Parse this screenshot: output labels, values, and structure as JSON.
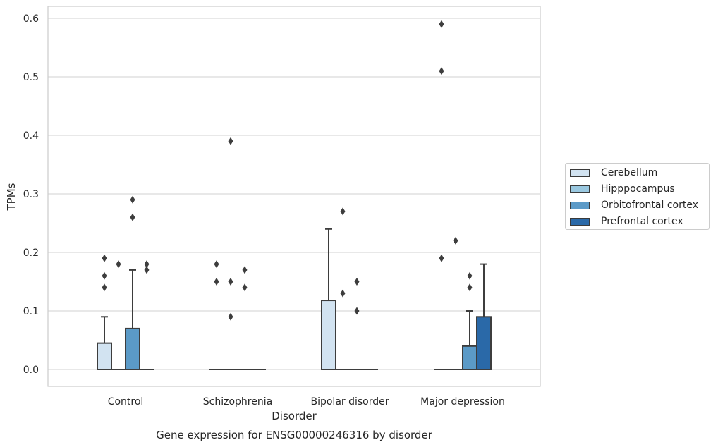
{
  "chart_data": {
    "type": "box",
    "title": "",
    "caption": "Gene expression for ENSG00000246316 by disorder",
    "xlabel": "Disorder",
    "ylabel": "TPMs",
    "ylim": [
      -0.03,
      0.62
    ],
    "yticks": [
      0.0,
      0.1,
      0.2,
      0.3,
      0.4,
      0.5,
      0.6
    ],
    "ytick_labels": [
      "0.0",
      "0.1",
      "0.2",
      "0.3",
      "0.4",
      "0.5",
      "0.6"
    ],
    "grid": "horizontal",
    "legend_position": "right",
    "categories": [
      "Control",
      "Schizophrenia",
      "Bipolar disorder",
      "Major depression"
    ],
    "series": [
      {
        "name": "Cerebellum",
        "color": "#d2e3f1",
        "boxes": [
          {
            "q1": 0,
            "median": 0,
            "q3": 0.045,
            "whisker_low": 0,
            "whisker_high": 0.09,
            "outliers": [
              0.14,
              0.16,
              0.19
            ]
          },
          {
            "q1": 0,
            "median": 0,
            "q3": 0,
            "whisker_low": 0,
            "whisker_high": 0,
            "outliers": [
              0.15,
              0.18
            ]
          },
          {
            "q1": 0,
            "median": 0,
            "q3": 0.118,
            "whisker_low": 0,
            "whisker_high": 0.24,
            "outliers": []
          },
          {
            "q1": 0,
            "median": 0,
            "q3": 0,
            "whisker_low": 0,
            "whisker_high": 0,
            "outliers": [
              0.19,
              0.51,
              0.59
            ]
          }
        ]
      },
      {
        "name": "Hipppocampus",
        "color": "#9ac8e0",
        "boxes": [
          {
            "q1": 0,
            "median": 0,
            "q3": 0,
            "whisker_low": 0,
            "whisker_high": 0,
            "outliers": [
              0.18
            ]
          },
          {
            "q1": 0,
            "median": 0,
            "q3": 0,
            "whisker_low": 0,
            "whisker_high": 0,
            "outliers": [
              0.15,
              0.39,
              0.09
            ]
          },
          {
            "q1": 0,
            "median": 0,
            "q3": 0,
            "whisker_low": 0,
            "whisker_high": 0,
            "outliers": [
              0.27,
              0.13
            ]
          },
          {
            "q1": 0,
            "median": 0,
            "q3": 0,
            "whisker_low": 0,
            "whisker_high": 0,
            "outliers": [
              0.22
            ]
          }
        ]
      },
      {
        "name": "Orbitofrontal cortex",
        "color": "#5b9ac7",
        "boxes": [
          {
            "q1": 0,
            "median": 0,
            "q3": 0.07,
            "whisker_low": 0,
            "whisker_high": 0.17,
            "outliers": [
              0.26,
              0.29
            ]
          },
          {
            "q1": 0,
            "median": 0,
            "q3": 0,
            "whisker_low": 0,
            "whisker_high": 0,
            "outliers": [
              0.14,
              0.17
            ]
          },
          {
            "q1": 0,
            "median": 0,
            "q3": 0,
            "whisker_low": 0,
            "whisker_high": 0,
            "outliers": [
              0.1,
              0.15
            ]
          },
          {
            "q1": 0,
            "median": 0,
            "q3": 0.04,
            "whisker_low": 0,
            "whisker_high": 0.1,
            "outliers": [
              0.14,
              0.16
            ]
          }
        ]
      },
      {
        "name": "Prefrontal cortex",
        "color": "#2a69a8",
        "boxes": [
          {
            "q1": 0,
            "median": 0,
            "q3": 0,
            "whisker_low": 0,
            "whisker_high": 0,
            "outliers": [
              0.17,
              0.18
            ]
          },
          {
            "q1": 0,
            "median": 0,
            "q3": 0,
            "whisker_low": 0,
            "whisker_high": 0,
            "outliers": []
          },
          {
            "q1": 0,
            "median": 0,
            "q3": 0,
            "whisker_low": 0,
            "whisker_high": 0,
            "outliers": []
          },
          {
            "q1": 0,
            "median": 0,
            "q3": 0.09,
            "whisker_low": 0,
            "whisker_high": 0.18,
            "outliers": []
          }
        ]
      }
    ]
  }
}
